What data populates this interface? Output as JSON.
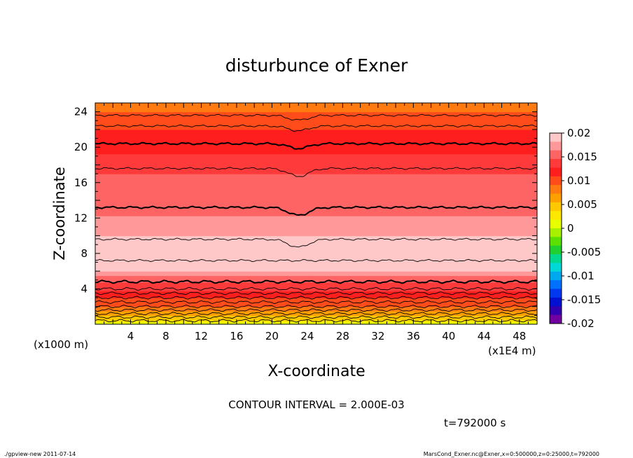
{
  "chart_data": {
    "type": "heatmap",
    "title": "disturbunce of Exner",
    "xlabel": "X-coordinate",
    "ylabel": "Z-coordinate",
    "x_unit": "(x1E4 m)",
    "y_unit": "(x1000 m)",
    "xlim": [
      0,
      50
    ],
    "ylim": [
      0,
      25
    ],
    "x_ticks": [
      4,
      8,
      12,
      16,
      20,
      24,
      28,
      32,
      36,
      40,
      44,
      48
    ],
    "y_ticks": [
      4,
      8,
      12,
      16,
      20,
      24
    ],
    "contour_interval_label": "CONTOUR INTERVAL = 2.000E-03",
    "time_label": "t=792000 s",
    "colorbar": {
      "range": [
        -0.02,
        0.02
      ],
      "tick_labels": [
        "0.02",
        "0.015",
        "0.01",
        "0.005",
        "0",
        "-0.005",
        "-0.01",
        "-0.015",
        "-0.02"
      ],
      "tick_values": [
        0.02,
        0.015,
        0.01,
        0.005,
        0,
        -0.005,
        -0.01,
        -0.015,
        -0.02
      ],
      "colors_top_to_bottom": [
        "#ffc8c8",
        "#ff9898",
        "#ff6464",
        "#ff3a3a",
        "#ff1e1e",
        "#ff4c1a",
        "#ff7a10",
        "#ffa000",
        "#ffc800",
        "#ffe800",
        "#e8ff00",
        "#a6f000",
        "#5ce000",
        "#20d030",
        "#00d890",
        "#00d8d8",
        "#00a8f0",
        "#0070ff",
        "#0038f0",
        "#0010d0",
        "#3000b0",
        "#7000a0"
      ]
    },
    "z_profile": {
      "z": [
        0,
        1,
        2,
        3,
        4,
        5,
        6,
        7,
        8,
        9,
        10,
        11,
        12,
        13,
        14,
        15,
        16,
        17,
        18,
        19,
        20,
        21,
        22,
        23,
        24,
        25
      ],
      "value": [
        0.0,
        0.006,
        0.009,
        0.011,
        0.013,
        0.015,
        0.018,
        0.0195,
        0.02,
        0.0195,
        0.018,
        0.017,
        0.0165,
        0.016,
        0.0155,
        0.015,
        0.015,
        0.0145,
        0.014,
        0.013,
        0.012,
        0.0115,
        0.011,
        0.01,
        0.009,
        0.008
      ]
    },
    "contour_levels_shown_z": [
      0.4,
      0.8,
      1.2,
      1.6,
      2.0,
      2.5,
      3.0,
      3.5,
      4.0,
      4.8,
      7.2,
      9.6,
      13.2,
      17.6,
      20.4,
      22.4,
      23.6
    ]
  },
  "footer": {
    "left": "./gpview-new   2011-07-14",
    "right": "MarsCond_Exner.nc@Exner,x=0:500000,z=0:25000,t=792000"
  }
}
